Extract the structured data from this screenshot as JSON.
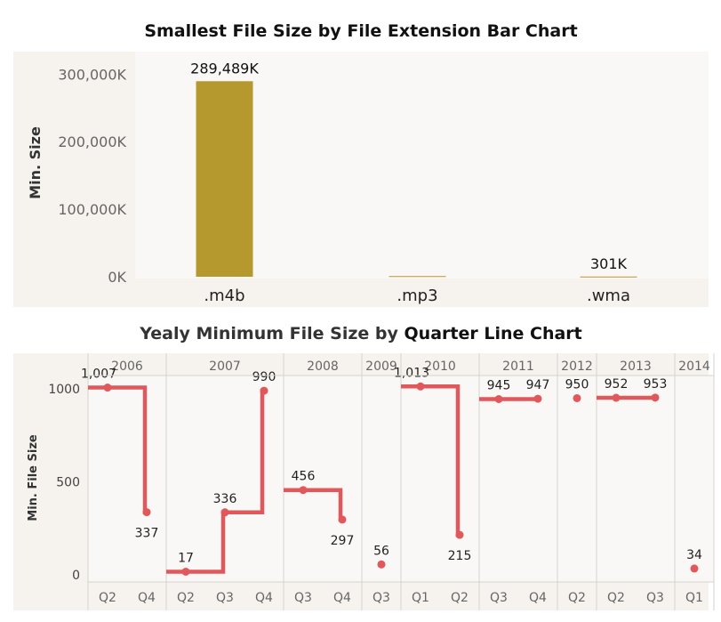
{
  "colors": {
    "bar": "#b5992e",
    "line": "#e0585b",
    "panel_bg": "#f6f2ee",
    "plot_bg": "#faf8f6",
    "grid": "#d6d2ce",
    "tick_text": "#666666",
    "title_text": "#111111"
  },
  "chart_data": [
    {
      "type": "bar",
      "title": "Smallest File Size by File Extension Bar Chart",
      "xlabel": "",
      "ylabel": "Min. Size",
      "categories": [
        ".m4b",
        ".mp3",
        ".wma"
      ],
      "values": [
        289489,
        1000,
        301
      ],
      "value_labels": [
        "289,489K",
        "",
        "301K"
      ],
      "ylim": [
        0,
        330000
      ],
      "yticks": [
        {
          "value": 0,
          "label": "0K"
        },
        {
          "value": 100000,
          "label": "100,000K"
        },
        {
          "value": 200000,
          "label": "200,000K"
        },
        {
          "value": 300000,
          "label": "300,000K"
        }
      ],
      "grid": false
    },
    {
      "type": "line",
      "title_prefix": "Yealy Minimum File Size by ",
      "title_suffix": "Quarter Line Chart",
      "ylabel": "Min. File Size",
      "ylim": [
        0,
        1100
      ],
      "yticks": [
        {
          "value": 0,
          "label": "0"
        },
        {
          "value": 500,
          "label": "500"
        },
        {
          "value": 1000,
          "label": "1000"
        }
      ],
      "years": [
        {
          "year": "2006",
          "quarters": [
            "Q2",
            "Q4"
          ],
          "values": [
            1007,
            337
          ],
          "labels": [
            "1,007",
            "337"
          ]
        },
        {
          "year": "2007",
          "quarters": [
            "Q2",
            "Q3",
            "Q4"
          ],
          "values": [
            17,
            336,
            990
          ],
          "labels": [
            "17",
            "336",
            "990"
          ]
        },
        {
          "year": "2008",
          "quarters": [
            "Q3",
            "Q4"
          ],
          "values": [
            456,
            297
          ],
          "labels": [
            "456",
            "297"
          ]
        },
        {
          "year": "2009",
          "quarters": [
            "Q3"
          ],
          "values": [
            56
          ],
          "labels": [
            "56"
          ]
        },
        {
          "year": "2010",
          "quarters": [
            "Q1",
            "Q2"
          ],
          "values": [
            1013,
            215
          ],
          "labels": [
            "1,013",
            "215"
          ]
        },
        {
          "year": "2011",
          "quarters": [
            "Q3",
            "Q4"
          ],
          "values": [
            945,
            947
          ],
          "labels": [
            "945",
            "947"
          ]
        },
        {
          "year": "2012",
          "quarters": [
            "Q2"
          ],
          "values": [
            950
          ],
          "labels": [
            "950"
          ]
        },
        {
          "year": "2013",
          "quarters": [
            "Q2",
            "Q3"
          ],
          "values": [
            952,
            953
          ],
          "labels": [
            "952",
            "953"
          ]
        },
        {
          "year": "2014",
          "quarters": [
            "Q1"
          ],
          "values": [
            34
          ],
          "labels": [
            "34"
          ]
        }
      ],
      "grid": false
    }
  ]
}
